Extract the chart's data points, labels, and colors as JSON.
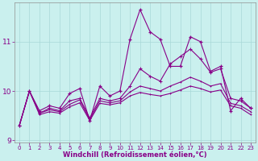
{
  "xlabel": "Windchill (Refroidissement éolien,°C)",
  "background_color": "#caf0ee",
  "grid_color": "#a8d8d8",
  "line_color": "#880088",
  "x": [
    0,
    1,
    2,
    3,
    4,
    5,
    6,
    7,
    8,
    9,
    10,
    11,
    12,
    13,
    14,
    15,
    16,
    17,
    18,
    19,
    20,
    21,
    22,
    23
  ],
  "s1": [
    9.3,
    10.0,
    9.6,
    9.7,
    9.65,
    9.95,
    10.05,
    9.4,
    10.1,
    9.9,
    10.0,
    11.05,
    11.65,
    11.2,
    11.05,
    10.5,
    10.5,
    11.1,
    11.0,
    10.4,
    10.5,
    9.6,
    9.85,
    9.65
  ],
  "s2": [
    9.3,
    10.0,
    9.55,
    9.65,
    9.6,
    9.8,
    9.85,
    9.45,
    9.85,
    9.8,
    9.85,
    10.1,
    10.45,
    10.3,
    10.2,
    10.55,
    10.7,
    10.85,
    10.65,
    10.38,
    10.45,
    9.85,
    9.8,
    9.65
  ],
  "s3": [
    9.3,
    10.0,
    9.55,
    9.62,
    9.58,
    9.73,
    9.82,
    9.42,
    9.8,
    9.76,
    9.8,
    9.98,
    10.1,
    10.05,
    10.0,
    10.1,
    10.18,
    10.28,
    10.2,
    10.1,
    10.15,
    9.75,
    9.7,
    9.58
  ],
  "s4": [
    9.3,
    10.0,
    9.52,
    9.58,
    9.55,
    9.68,
    9.76,
    9.4,
    9.75,
    9.72,
    9.76,
    9.9,
    9.97,
    9.93,
    9.9,
    9.95,
    10.02,
    10.1,
    10.05,
    9.98,
    10.02,
    9.7,
    9.65,
    9.52
  ],
  "ylim": [
    8.95,
    11.8
  ],
  "yticks": [
    9,
    10,
    11
  ],
  "xlim": [
    -0.5,
    23.5
  ],
  "xtick_fontsize": 5.0,
  "ytick_fontsize": 6.5,
  "xlabel_fontsize": 6.0
}
